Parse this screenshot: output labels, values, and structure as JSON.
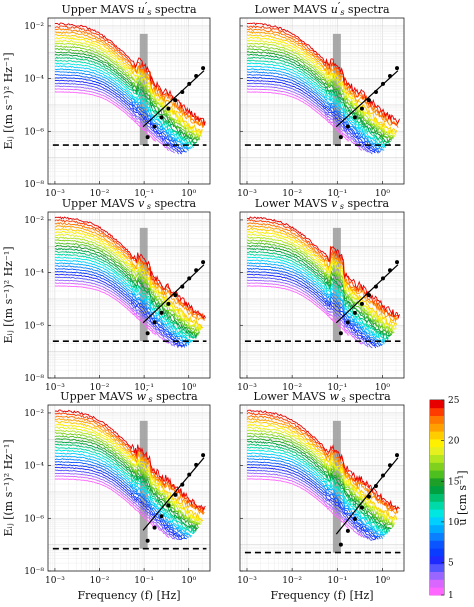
{
  "chart_data": [
    {
      "type": "line",
      "title": "Upper MAVS u′s spectra",
      "title_main": "Upper MAVS ",
      "title_var": "u",
      "title_prime": "′",
      "title_sub": "s",
      "title_tail": " spectra",
      "ylabel": "Eᵢⱼ [(m s⁻¹)² Hz⁻¹]",
      "xlabel": "",
      "xscale": "log",
      "yscale": "log",
      "xlim": [
        0.0007,
        3
      ],
      "ylim": [
        1e-08,
        0.02
      ],
      "dominant_band_hz": [
        0.08,
        0.12
      ],
      "noise_floor": 3e-07,
      "n_series": 25
    },
    {
      "type": "line",
      "title": "Lower MAVS u′s spectra",
      "title_main": "Lower MAVS ",
      "title_var": "u",
      "title_prime": "′",
      "title_sub": "s",
      "title_tail": " spectra",
      "ylabel": "",
      "xlabel": "",
      "xscale": "log",
      "yscale": "log",
      "xlim": [
        0.0007,
        3
      ],
      "ylim": [
        1e-08,
        0.02
      ],
      "dominant_band_hz": [
        0.08,
        0.12
      ],
      "noise_floor": 3e-07,
      "n_series": 25
    },
    {
      "type": "line",
      "title": "Upper MAVS v′s spectra",
      "title_main": "Upper MAVS ",
      "title_var": "v",
      "title_prime": "′",
      "title_sub": "s",
      "title_tail": " spectra",
      "ylabel": "Eᵢⱼ [(m s⁻¹)² Hz⁻¹]",
      "xlabel": "",
      "xscale": "log",
      "yscale": "log",
      "xlim": [
        0.0007,
        3
      ],
      "ylim": [
        1e-08,
        0.02
      ],
      "dominant_band_hz": [
        0.08,
        0.12
      ],
      "noise_floor": 2.5e-07,
      "n_series": 25
    },
    {
      "type": "line",
      "title": "Lower MAVS v′s spectra",
      "title_main": "Lower MAVS ",
      "title_var": "v",
      "title_prime": "′",
      "title_sub": "s",
      "title_tail": " spectra",
      "ylabel": "",
      "xlabel": "",
      "xscale": "log",
      "yscale": "log",
      "xlim": [
        0.0007,
        3
      ],
      "ylim": [
        1e-08,
        0.02
      ],
      "dominant_band_hz": [
        0.08,
        0.12
      ],
      "noise_floor": 2.5e-07,
      "n_series": 25
    },
    {
      "type": "line",
      "title": "Upper MAVS w′s spectra",
      "title_main": "Upper MAVS ",
      "title_var": "w",
      "title_prime": "′",
      "title_sub": "s",
      "title_tail": " spectra",
      "ylabel": "Eᵢⱼ [(m s⁻¹)² Hz⁻¹]",
      "xlabel": "Frequency (f) [Hz]",
      "xscale": "log",
      "yscale": "log",
      "xlim": [
        0.0007,
        3
      ],
      "ylim": [
        1e-08,
        0.02
      ],
      "dominant_band_hz": [
        0.08,
        0.12
      ],
      "noise_floor": 7e-08,
      "n_series": 25
    },
    {
      "type": "line",
      "title": "Lower MAVS w′s spectra",
      "title_main": "Lower MAVS ",
      "title_var": "w",
      "title_prime": "′",
      "title_sub": "s",
      "title_tail": " spectra",
      "ylabel": "",
      "xlabel": "Frequency (f) [Hz]",
      "xscale": "log",
      "yscale": "log",
      "xlim": [
        0.0007,
        3
      ],
      "ylim": [
        1e-08,
        0.02
      ],
      "dominant_band_hz": [
        0.08,
        0.12
      ],
      "noise_floor": 5e-08,
      "n_series": 25
    }
  ],
  "y_ticks": [
    "10⁻⁸",
    "10⁻⁶",
    "10⁻⁴",
    "10⁻²"
  ],
  "y_tick_values": [
    1e-08,
    1e-06,
    0.0001,
    0.01
  ],
  "x_ticks": [
    "10⁻³",
    "10⁻²",
    "10⁻¹",
    "10⁰"
  ],
  "x_tick_values": [
    0.001,
    0.01,
    0.1,
    1
  ],
  "colorbar": {
    "label": "ū [cm s⁻¹]",
    "ticks": [
      "1",
      "5",
      "10",
      "15",
      "20",
      "25"
    ],
    "tick_values": [
      1,
      5,
      10,
      15,
      20,
      25
    ],
    "range": [
      1,
      25
    ],
    "colors": [
      "#ff66ff",
      "#d966ff",
      "#9966ff",
      "#5555ff",
      "#1e2aff",
      "#0a3cff",
      "#0a55ff",
      "#0a80ff",
      "#00aaff",
      "#00cfff",
      "#00e6e0",
      "#00d9a8",
      "#00c070",
      "#00a040",
      "#1ea028",
      "#4dbf1e",
      "#80d01e",
      "#b3e61e",
      "#e6f01e",
      "#fff000",
      "#ffcc00",
      "#ffa000",
      "#ff7800",
      "#ff3c00",
      "#e60000"
    ]
  }
}
